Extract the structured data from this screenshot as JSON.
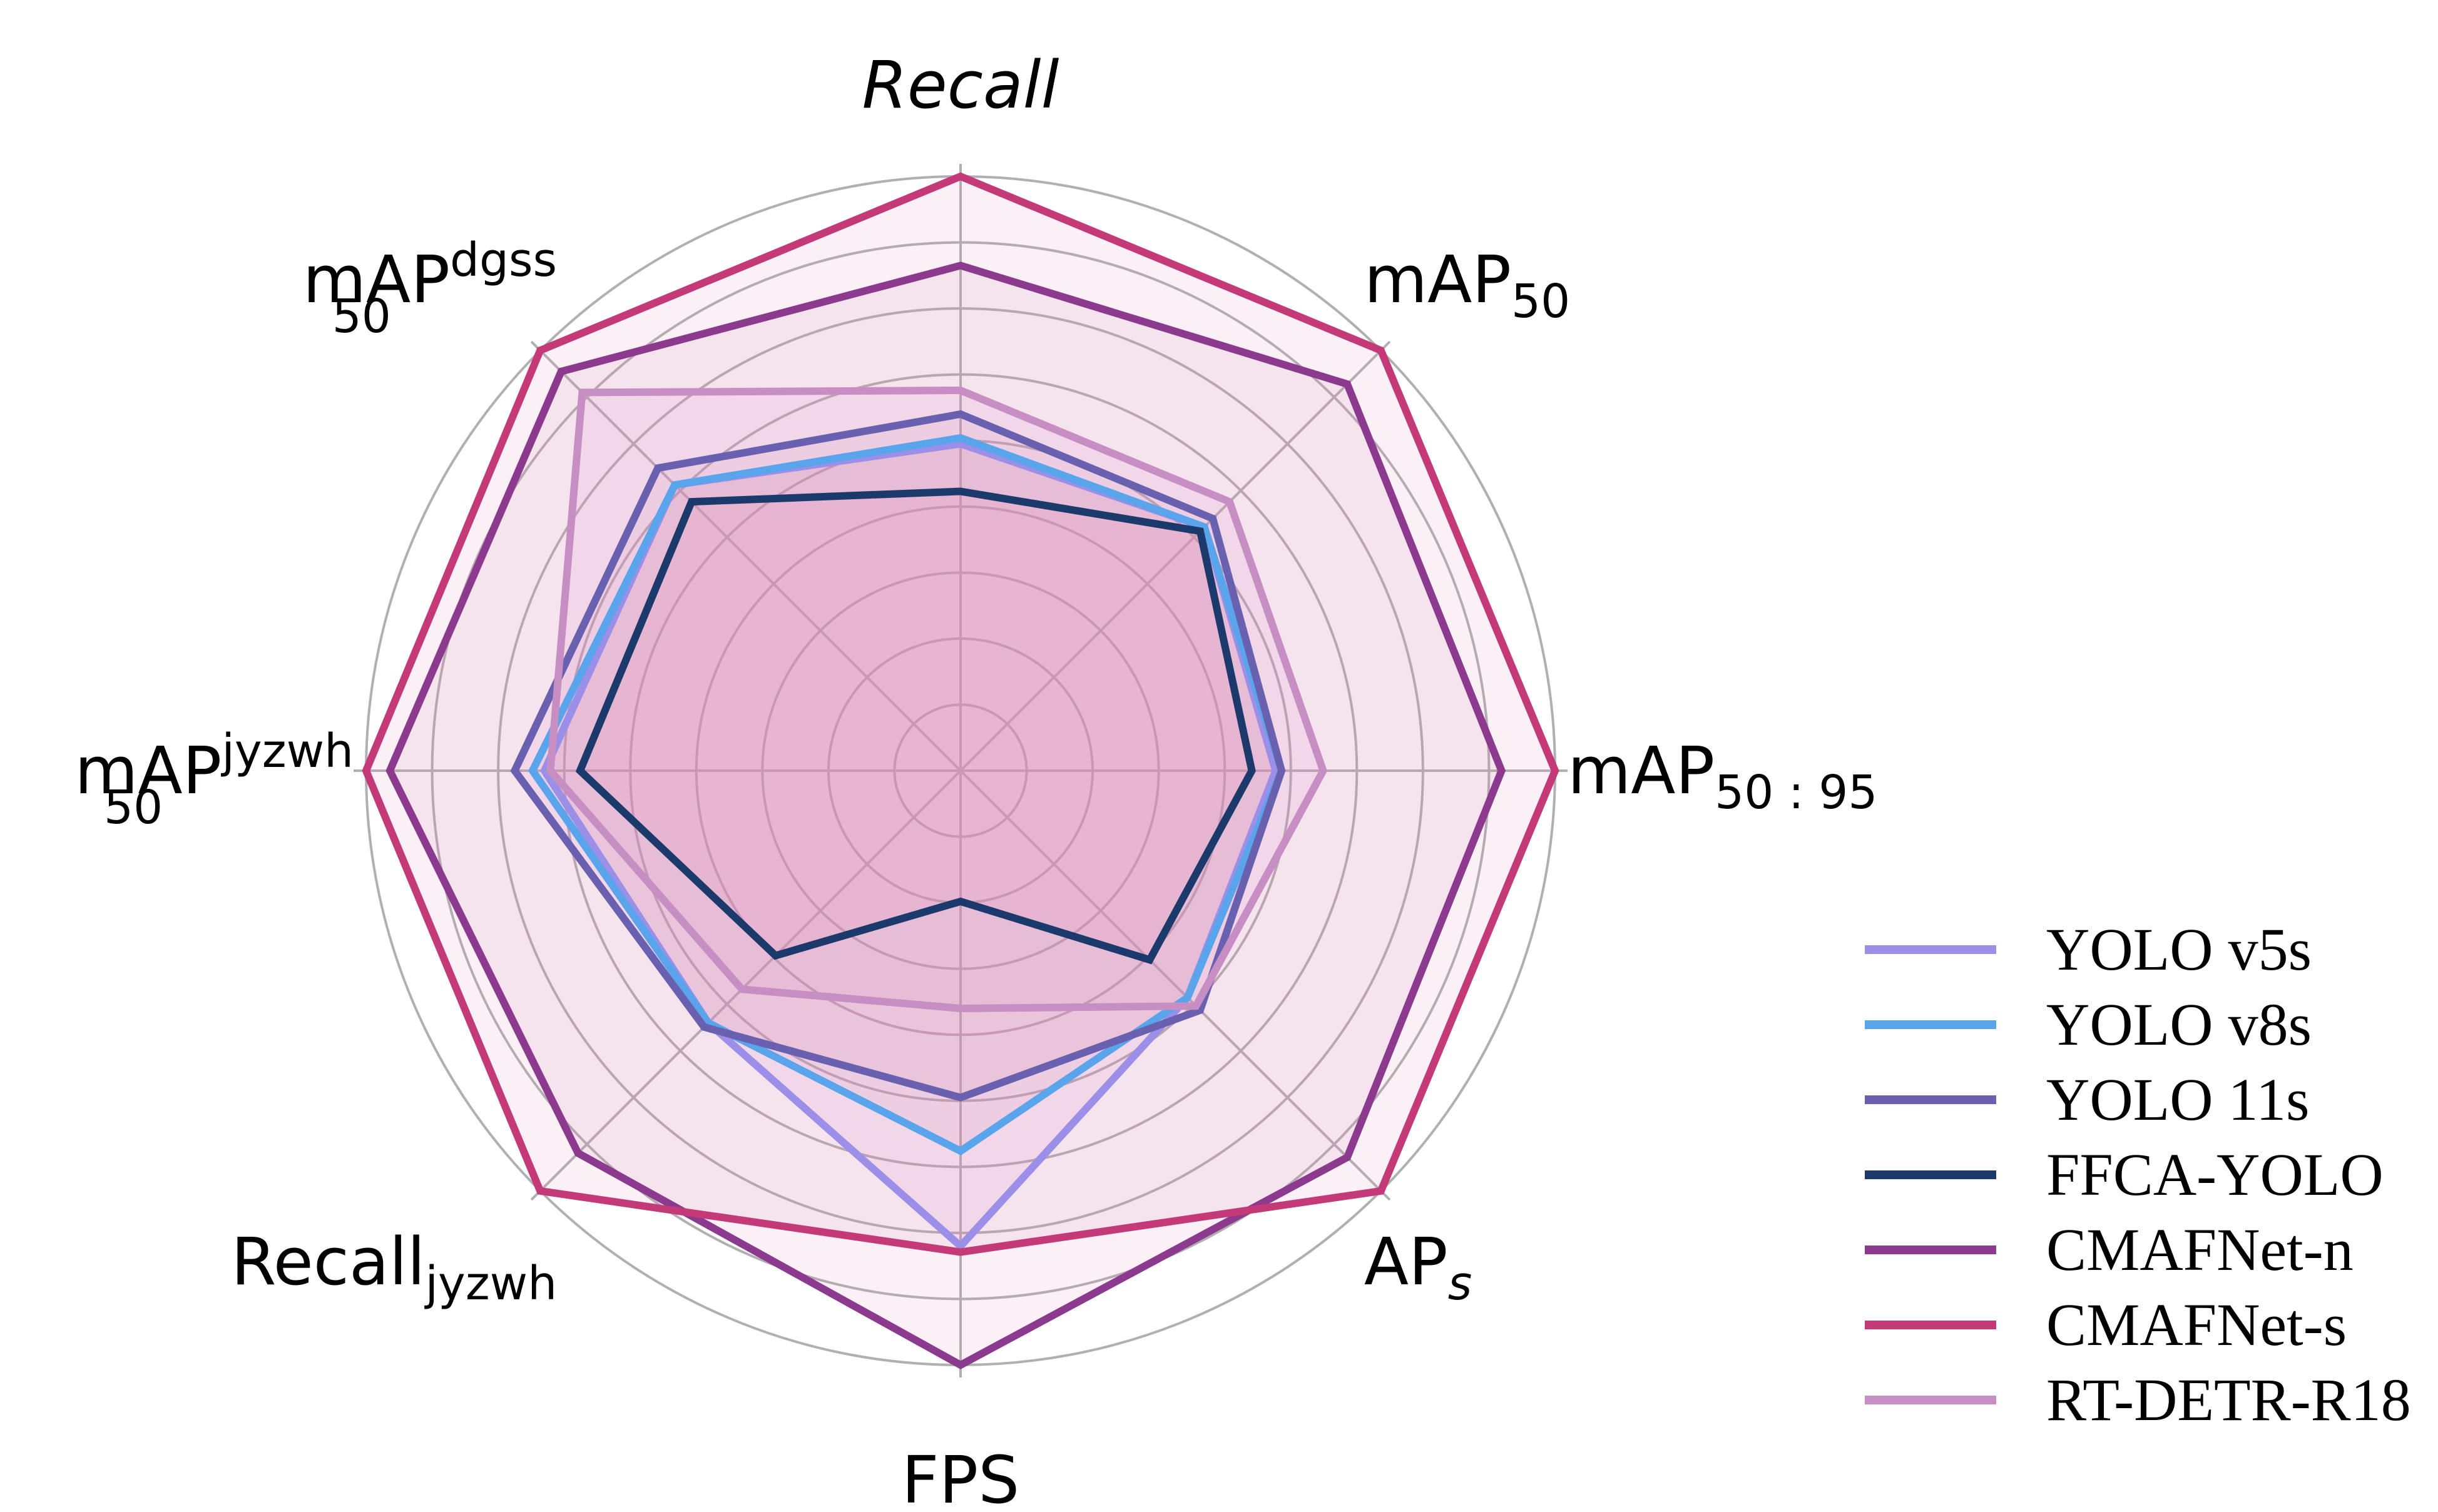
{
  "chart_data": {
    "type": "radar",
    "axes": [
      {
        "key": "recall",
        "base": "Recall",
        "italic": true,
        "sub": "",
        "sup": ""
      },
      {
        "key": "map50",
        "base": "mAP",
        "sub": "50",
        "sup": ""
      },
      {
        "key": "map5095",
        "base": "mAP",
        "sub": "50 : 95",
        "sup": ""
      },
      {
        "key": "aps",
        "base": "AP",
        "sub": "s",
        "sub_italic": true,
        "sup": ""
      },
      {
        "key": "fps",
        "base": "FPS",
        "sub": "",
        "sup": ""
      },
      {
        "key": "recall_jyzwh",
        "base": "Recall",
        "sub": "jyzwh",
        "sup": ""
      },
      {
        "key": "map50_jyzwh",
        "base": "mAP",
        "sub": "50",
        "sup": "jyzwh"
      },
      {
        "key": "map50_dgss",
        "base": "mAP",
        "sub": "50",
        "sup": "dgss"
      }
    ],
    "rmax": 1.0,
    "rings": 9,
    "series": [
      {
        "name": "YOLO v5s",
        "color": "#9b8fe8",
        "values": [
          0.55,
          0.58,
          0.53,
          0.54,
          0.8,
          0.6,
          0.7,
          0.68
        ]
      },
      {
        "name": "YOLO v8s",
        "color": "#5aa4ec",
        "values": [
          0.56,
          0.58,
          0.54,
          0.54,
          0.64,
          0.6,
          0.72,
          0.68
        ]
      },
      {
        "name": "YOLO 11s",
        "color": "#6a60b0",
        "values": [
          0.6,
          0.6,
          0.54,
          0.57,
          0.55,
          0.61,
          0.75,
          0.72
        ]
      },
      {
        "name": "FFCA-YOLO",
        "color": "#1b3a6b",
        "values": [
          0.47,
          0.57,
          0.49,
          0.45,
          0.22,
          0.44,
          0.64,
          0.64
        ]
      },
      {
        "name": "CMAFNet-n",
        "color": "#8b3a8e",
        "values": [
          0.85,
          0.92,
          0.91,
          0.92,
          1.0,
          0.91,
          0.96,
          0.95
        ]
      },
      {
        "name": "CMAFNet-s",
        "color": "#c43a78",
        "values": [
          1.0,
          1.0,
          1.0,
          1.0,
          0.81,
          1.0,
          1.0,
          1.0
        ]
      },
      {
        "name": "RT-DETR-R18",
        "color": "#c78ec3",
        "values": [
          0.64,
          0.64,
          0.61,
          0.56,
          0.4,
          0.52,
          0.69,
          0.9
        ]
      }
    ],
    "fill_color": "#d98cb8",
    "legend_position": "bottom-right"
  }
}
